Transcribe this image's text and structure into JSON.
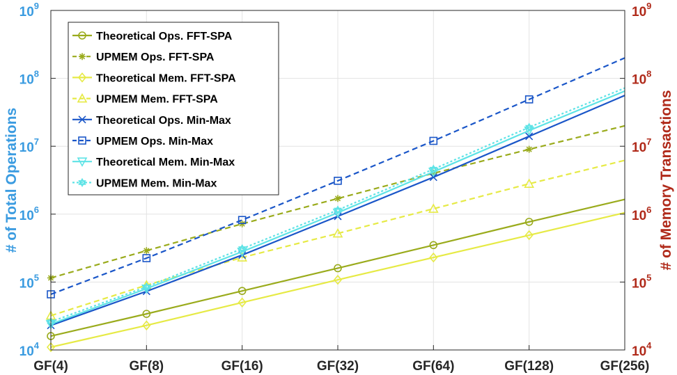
{
  "chart_data": {
    "type": "line",
    "x_categories": [
      "GF(4)",
      "GF(8)",
      "GF(16)",
      "GF(32)",
      "GF(64)",
      "GF(128)",
      "GF(256)"
    ],
    "yscale": "log",
    "ylim_left": [
      10000,
      1000000000
    ],
    "ylim_right": [
      10000,
      1000000000
    ],
    "ylabel_left": "# of Total Operations",
    "ylabel_right": "# of Memory Transactions",
    "ylabel_left_color": "#3a9be0",
    "ylabel_right_color": "#b02a1a",
    "yticks": [
      {
        "value": 10000,
        "base": "10",
        "exp": "4"
      },
      {
        "value": 100000,
        "base": "10",
        "exp": "5"
      },
      {
        "value": 1000000,
        "base": "10",
        "exp": "6"
      },
      {
        "value": 10000000,
        "base": "10",
        "exp": "7"
      },
      {
        "value": 100000000,
        "base": "10",
        "exp": "8"
      },
      {
        "value": 1000000000,
        "base": "10",
        "exp": "9"
      }
    ],
    "grid": true,
    "legend_position": "top-left",
    "series": [
      {
        "name": "Theoretical Ops. FFT-SPA",
        "color": "#9aab1c",
        "dash": "solid",
        "marker": "circle",
        "values": [
          16000,
          34000,
          74000,
          160000,
          350000,
          770000,
          1650000
        ]
      },
      {
        "name": "UPMEM Ops. FFT-SPA",
        "color": "#9aab1c",
        "dash": "dashed",
        "marker": "asterisk",
        "values": [
          115000,
          290000,
          720000,
          1700000,
          4000000,
          9000000,
          20000000
        ]
      },
      {
        "name": "Theoretical Mem. FFT-SPA",
        "color": "#e6ea45",
        "dash": "solid",
        "marker": "diamond",
        "values": [
          11000,
          23000,
          50000,
          108000,
          230000,
          490000,
          1050000
        ]
      },
      {
        "name": "UPMEM Mem. FFT-SPA",
        "color": "#e6ea45",
        "dash": "dashed",
        "marker": "triangle-up",
        "values": [
          32000,
          90000,
          230000,
          520000,
          1200000,
          2800000,
          6200000
        ]
      },
      {
        "name": "Theoretical Ops. Min-Max",
        "color": "#1a56c8",
        "dash": "solid",
        "marker": "x",
        "values": [
          23000,
          73000,
          250000,
          930000,
          3500000,
          14000000,
          56000000
        ]
      },
      {
        "name": "UPMEM Ops. Min-Max",
        "color": "#1a56c8",
        "dash": "dashed",
        "marker": "square",
        "values": [
          66000,
          225000,
          820000,
          3100000,
          12000000,
          49000000,
          200000000
        ]
      },
      {
        "name": "Theoretical Mem. Min-Max",
        "color": "#5ee3e6",
        "dash": "solid",
        "marker": "triangle-down",
        "values": [
          24000,
          80000,
          280000,
          1050000,
          4200000,
          17000000,
          65000000
        ]
      },
      {
        "name": "UPMEM Mem. Min-Max",
        "color": "#5ee3e6",
        "dash": "dotted",
        "marker": "hexagram",
        "values": [
          26000,
          85000,
          310000,
          1150000,
          4600000,
          19000000,
          72000000
        ]
      }
    ]
  }
}
